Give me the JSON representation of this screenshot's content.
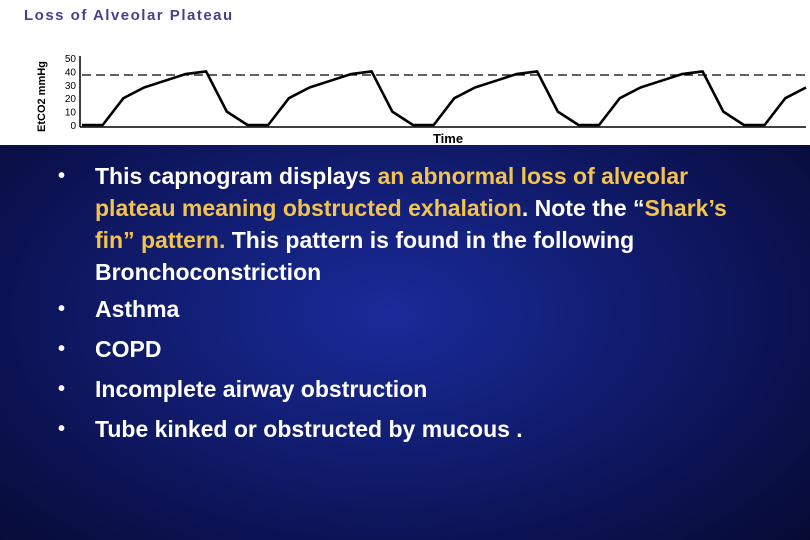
{
  "figure": {
    "title": "Loss of Alveolar Plateau",
    "ylabel": "EtCO2 mmHg",
    "xlabel": "Time",
    "colors": {
      "title": "#4a3f8f",
      "trace": "#000000",
      "background": "#ffffff"
    }
  },
  "chart_data": {
    "type": "line",
    "title": "Loss of Alveolar Plateau",
    "xlabel": "Time",
    "ylabel": "EtCO2 mmHg",
    "y_ticks": [
      0,
      10,
      20,
      30,
      40,
      50
    ],
    "ylim": [
      0,
      50
    ],
    "reference_line": 38,
    "series": [
      {
        "values": [
          0,
          0,
          20,
          28,
          33,
          38,
          40,
          10,
          0,
          0,
          20,
          28,
          33,
          38,
          40,
          10,
          0,
          0,
          20,
          28,
          33,
          38,
          40,
          10,
          0,
          0,
          20,
          28,
          33,
          38,
          40,
          10,
          0,
          0,
          20,
          28
        ]
      }
    ]
  },
  "body": {
    "bullet_1": {
      "part_1": "This capnogram displays ",
      "part_2": "an abnormal loss of alveolar plateau meaning obstructed exhalation",
      "part_3": ". Note the “",
      "part_4": "Shark’s fin” pattern.",
      "part_5": " This pattern is found in the following Bronchoconstriction"
    },
    "bullets": [
      "Asthma",
      "COPD",
      "Incomplete airway obstruction",
      "Tube kinked or obstructed by mucous ."
    ],
    "colors": {
      "text": "#ffffff",
      "highlight": "#f3c34f"
    }
  }
}
